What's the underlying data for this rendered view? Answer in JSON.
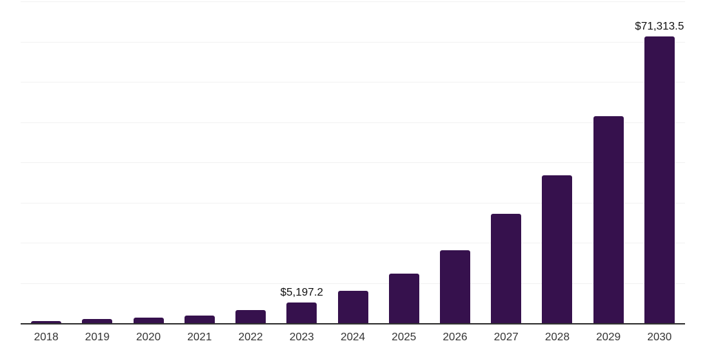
{
  "chart_data": {
    "type": "bar",
    "title": "",
    "xlabel": "",
    "ylabel": "",
    "categories": [
      "2018",
      "2019",
      "2020",
      "2021",
      "2022",
      "2023",
      "2024",
      "2025",
      "2026",
      "2027",
      "2028",
      "2029",
      "2030"
    ],
    "values": [
      600,
      950,
      1300,
      1900,
      3250,
      5197.2,
      8050,
      12300,
      18100,
      27150,
      36750,
      51500,
      71313.5
    ],
    "value_labels": [
      "",
      "",
      "",
      "",
      "",
      "$5,197.2",
      "",
      "",
      "",
      "",
      "",
      "",
      "$71,313.5"
    ],
    "ylim": [
      0,
      80000
    ],
    "grid_step": 10000,
    "grid": "horizontal-only",
    "legend": "none",
    "bar_color": "#36114D",
    "axis_line_color": "#333333",
    "gridline_color": "#f2f2f2",
    "label_color": "#111111",
    "tick_label_color": "#333333",
    "background_color": "#ffffff"
  }
}
